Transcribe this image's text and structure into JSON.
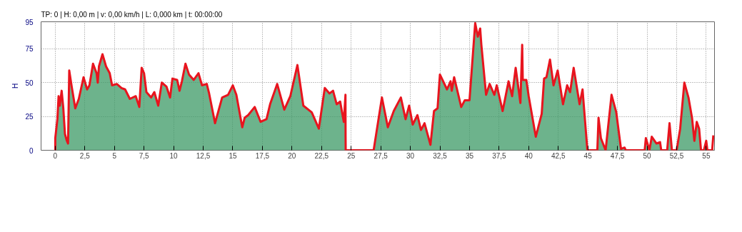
{
  "chart_data": {
    "type": "area",
    "ylabel": "H",
    "annotations": [
      "TP: 0 | H: 0,00 m | v: 0,00 km/h | L: 0,000 km | t: 00:00:00"
    ],
    "x": [
      0,
      0.0,
      0.18,
      0.28,
      0.38,
      0.54,
      0.68,
      0.82,
      0.98,
      1.08,
      1.18,
      1.39,
      1.69,
      1.99,
      2.29,
      2.39,
      2.69,
      2.89,
      3.19,
      3.49,
      3.59,
      3.69,
      3.99,
      4.29,
      4.6,
      4.8,
      5.2,
      5.6,
      5.9,
      6.3,
      6.8,
      7.1,
      7.3,
      7.5,
      7.7,
      8.1,
      8.37,
      8.7,
      9.0,
      9.4,
      9.7,
      9.9,
      10.3,
      10.5,
      10.7,
      11.0,
      11.3,
      11.7,
      12.1,
      12.4,
      12.8,
      13.0,
      13.5,
      14.1,
      14.6,
      15.0,
      15.3,
      15.8,
      16.0,
      16.3,
      16.85,
      17.35,
      17.85,
      18.15,
      18.75,
      19.35,
      19.86,
      20.46,
      20.96,
      21.67,
      22.27,
      22.77,
      23.17,
      23.47,
      23.78,
      24.07,
      24.38,
      24.52,
      24.53,
      24.54,
      26.9,
      27.6,
      28.1,
      28.6,
      29.2,
      29.6,
      29.9,
      30.2,
      30.6,
      30.9,
      31.2,
      31.7,
      32.0,
      32.3,
      32.5,
      33.1,
      33.4,
      33.5,
      33.7,
      34.3,
      34.6,
      35.0,
      35.48,
      35.7,
      35.9,
      36.0,
      36.4,
      36.7,
      37.1,
      37.3,
      37.8,
      38.3,
      38.6,
      38.9,
      39.3,
      39.45,
      39.5,
      39.8,
      40.0,
      40.6,
      41.1,
      41.3,
      41.5,
      41.8,
      42.1,
      42.45,
      42.9,
      43.25,
      43.5,
      43.8,
      44.3,
      44.55,
      44.96,
      45.8,
      45.9,
      46.1,
      46.5,
      47.0,
      47.4,
      47.8,
      48.1,
      48.2,
      49.8,
      49.9,
      50.2,
      50.4,
      50.8,
      51.1,
      51.2,
      51.7,
      51.9,
      52.1,
      52.5,
      52.8,
      53.15,
      53.5,
      53.8,
      54.0,
      54.2,
      54.4,
      54.56,
      54.8,
      55.0,
      55.1,
      55.5,
      55.6
    ],
    "series": [
      {
        "color": "#3c9a66",
        "values": [
          0,
          9,
          23,
          40,
          33,
          44,
          31,
          12,
          7,
          5,
          59,
          47,
          31,
          38,
          50,
          54,
          45,
          48,
          64,
          57,
          50,
          62,
          71,
          62,
          57,
          48,
          49,
          46,
          45,
          38,
          40,
          32,
          61,
          57,
          43,
          39,
          43,
          33,
          50,
          47,
          39,
          53,
          52,
          44,
          51,
          64,
          56,
          52,
          57,
          48,
          49,
          42,
          20,
          39,
          41,
          48,
          41,
          17,
          24,
          26,
          32,
          21,
          23,
          34,
          49,
          30,
          40,
          63,
          33,
          28,
          16,
          46,
          42,
          44,
          34,
          36,
          21,
          41,
          10,
          0,
          0,
          39,
          17,
          29,
          39,
          23,
          33,
          19,
          26,
          15,
          20,
          4,
          29,
          31,
          56,
          45,
          51,
          44,
          54,
          32,
          37,
          37,
          94,
          84,
          90,
          78,
          41,
          49,
          41,
          48,
          29,
          51,
          40,
          61,
          35,
          78,
          52,
          52,
          40,
          10,
          27,
          53,
          54,
          67,
          48,
          59,
          34,
          48,
          43,
          61,
          34,
          45,
          0,
          0,
          24,
          9,
          0,
          41,
          28,
          1,
          2,
          0,
          0,
          9,
          0,
          10,
          5,
          6,
          0,
          0,
          20,
          0,
          0,
          16,
          50,
          39,
          24,
          7,
          21,
          16,
          0,
          0,
          7,
          0,
          0,
          11
        ]
      }
    ],
    "xlim": [
      -1.2,
      55.7
    ],
    "xticks": [
      0,
      {
        "value": 2.5,
        "label": "2,5"
      },
      5,
      {
        "value": 7.5,
        "label": "7,5"
      },
      10,
      {
        "value": 12.5,
        "label": "12,5"
      },
      15,
      {
        "value": 17.5,
        "label": "17,5"
      },
      20,
      {
        "value": 22.5,
        "label": "22,5"
      },
      25,
      {
        "value": 27.5,
        "label": "27,5"
      },
      30,
      {
        "value": 32.5,
        "label": "32,5"
      },
      35,
      {
        "value": 37.5,
        "label": "37,5"
      },
      40,
      {
        "value": 42.5,
        "label": "42,5"
      },
      45,
      {
        "value": 47.5,
        "label": "47,5"
      },
      50,
      {
        "value": 52.5,
        "label": "52,5"
      },
      55
    ],
    "ylim": [
      0,
      95
    ],
    "yticks": [
      0,
      25,
      50,
      75,
      95
    ],
    "grid": true
  }
}
